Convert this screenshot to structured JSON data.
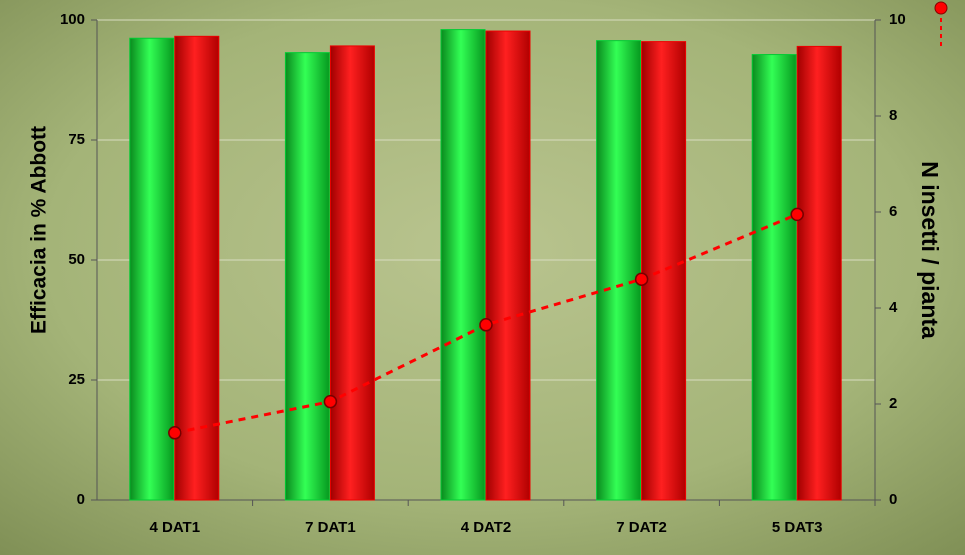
{
  "chart_data": {
    "type": "bar",
    "categories": [
      "4 DAT1",
      "7 DAT1",
      "4 DAT2",
      "7 DAT2",
      "5 DAT3"
    ],
    "series": [
      {
        "type": "bar",
        "color": "#00cc33",
        "values": [
          96.2,
          93.2,
          98.0,
          95.7,
          92.8
        ]
      },
      {
        "type": "bar",
        "color": "#ee0000",
        "values": [
          96.6,
          94.6,
          97.7,
          95.5,
          94.5
        ]
      },
      {
        "type": "line",
        "axis": "y2",
        "color": "#ff0000",
        "values": [
          1.4,
          2.05,
          3.65,
          4.6,
          5.95
        ]
      }
    ],
    "y_label": "Efficacia in % Abbott",
    "y2_label": "N insetti  / pianta",
    "ylim": [
      0,
      100
    ],
    "yticks": [
      0,
      25,
      50,
      75,
      100
    ],
    "y2lim": [
      0,
      10
    ],
    "y2ticks": [
      0,
      2,
      4,
      6,
      8,
      10
    ],
    "grid": true
  }
}
